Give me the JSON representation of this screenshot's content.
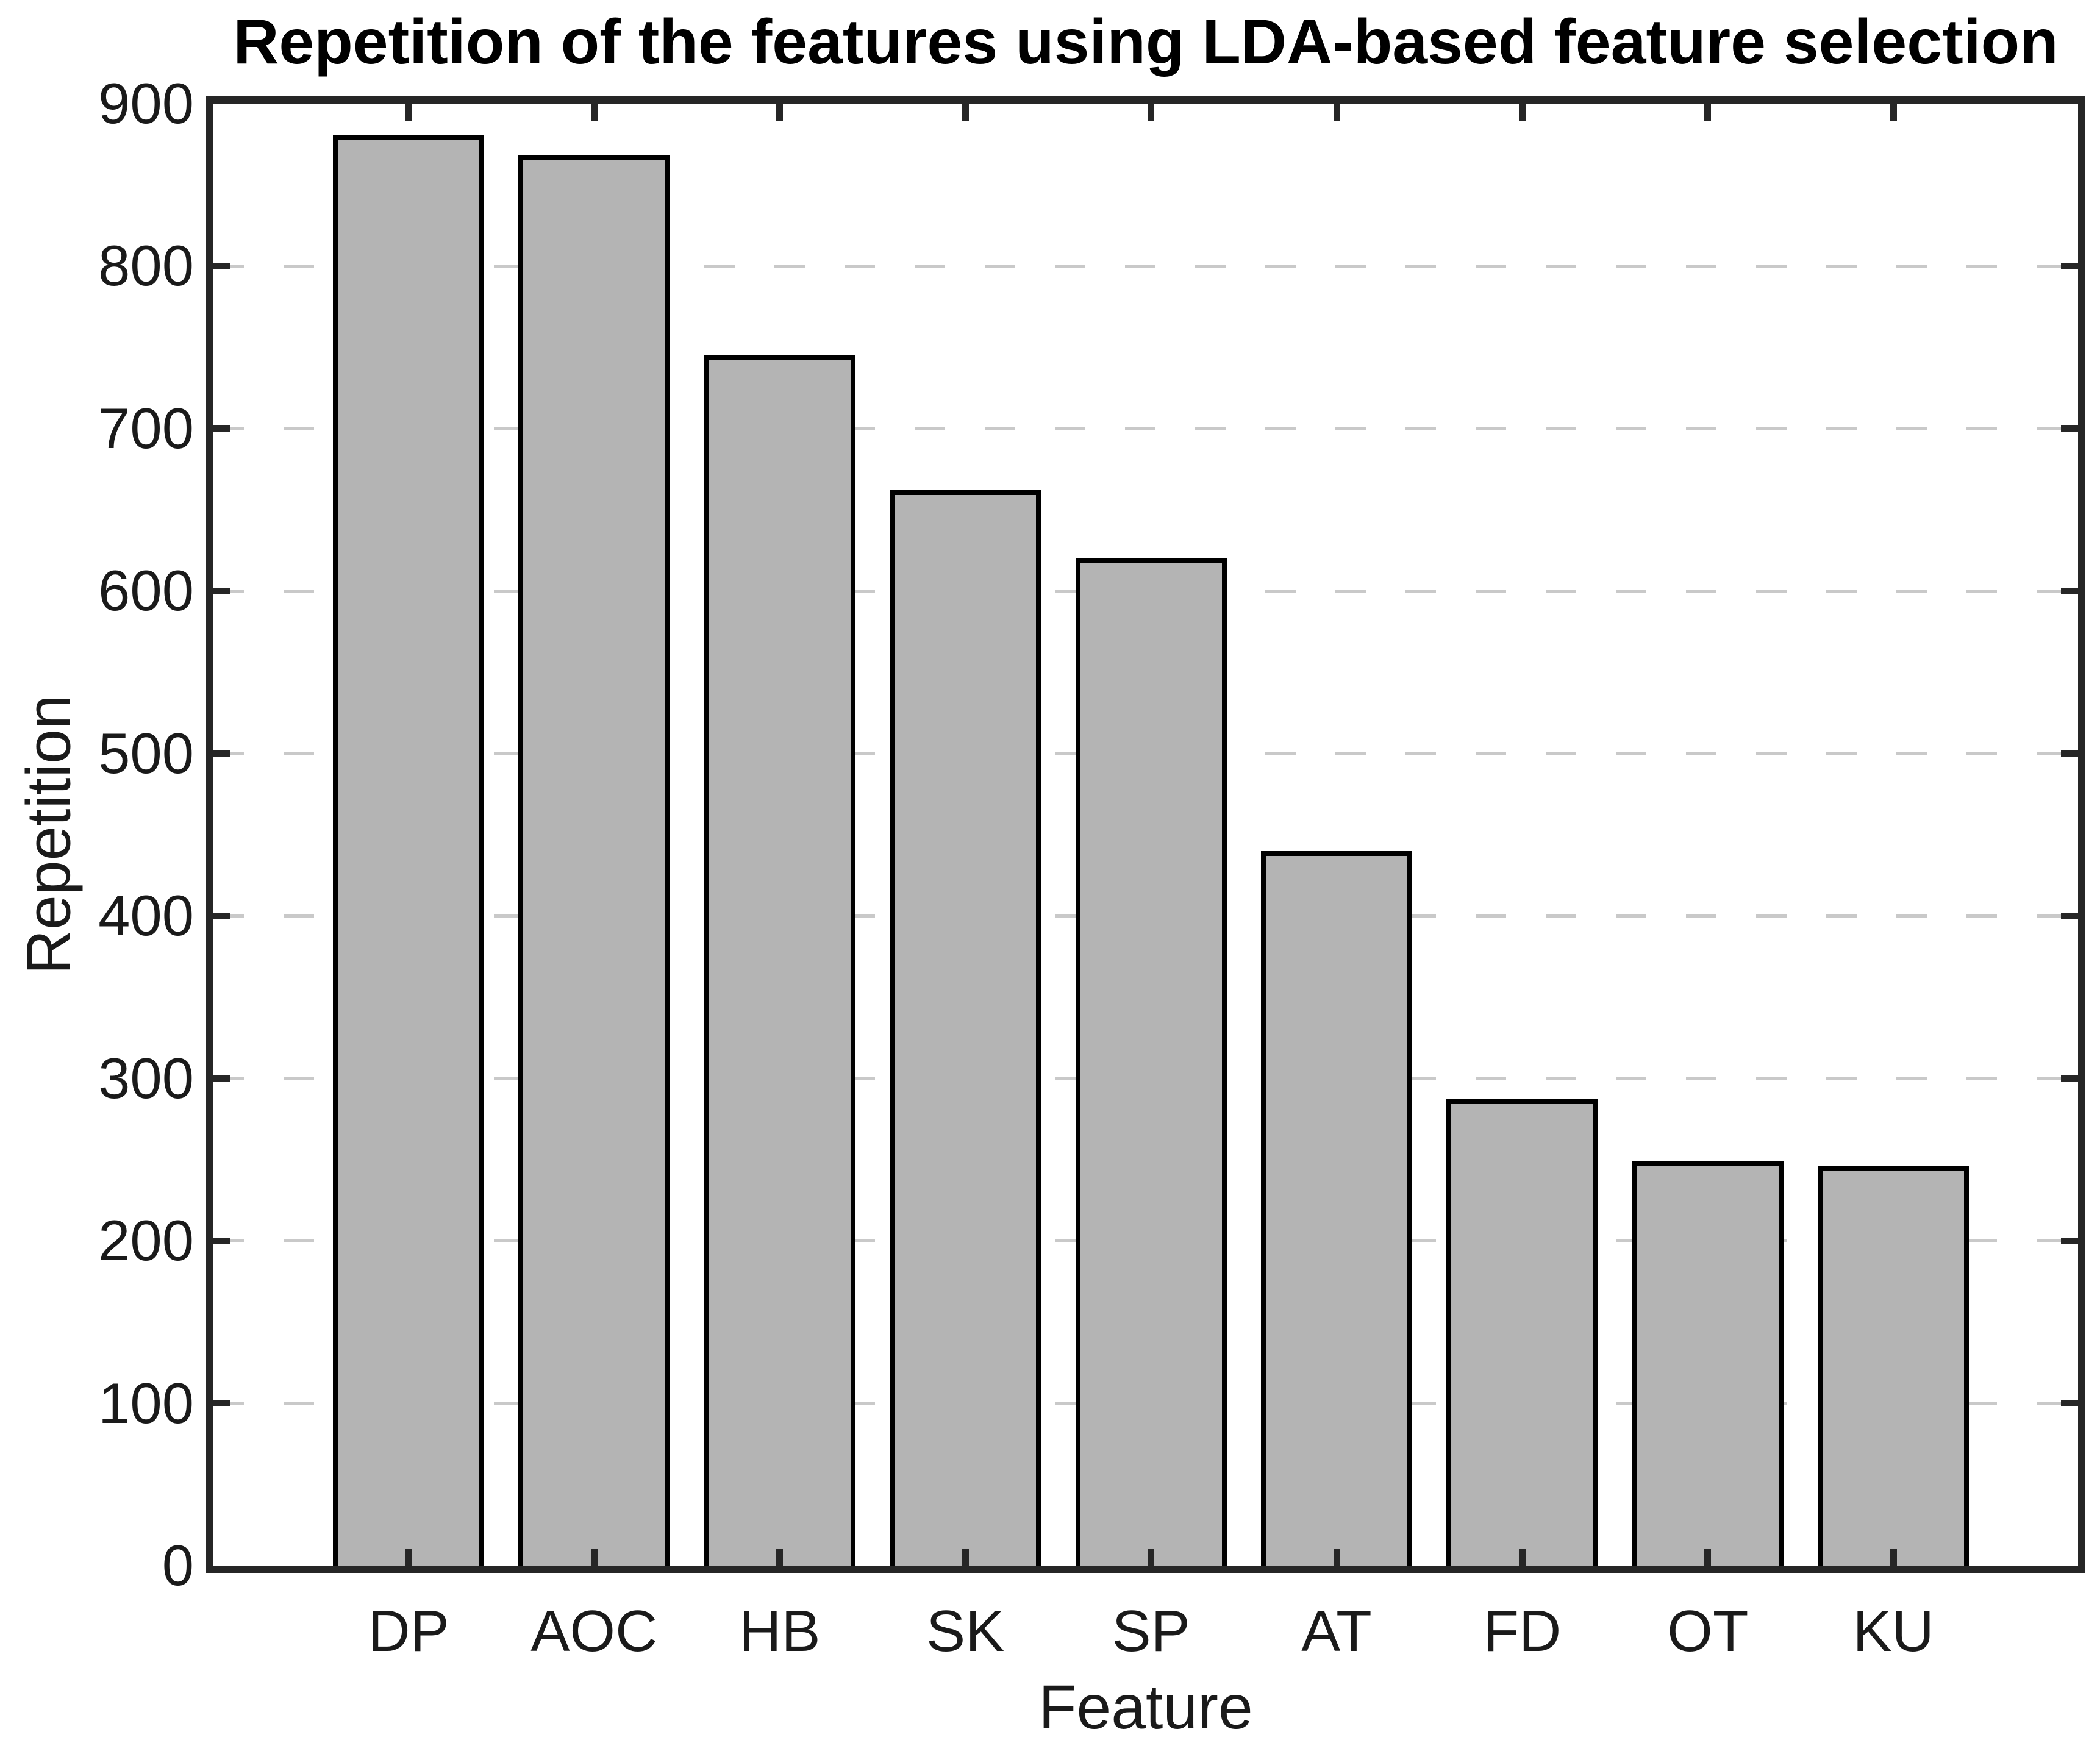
{
  "chart_data": {
    "type": "bar",
    "title": "Repetition of the features using LDA-based feature selection",
    "xlabel": "Feature",
    "ylabel": "Repetition",
    "categories": [
      "DP",
      "AOC",
      "HB",
      "SK",
      "SP",
      "AT",
      "FD",
      "OT",
      "KU"
    ],
    "values": [
      881,
      868,
      745,
      662,
      620,
      440,
      287,
      249,
      246
    ],
    "ylim": [
      0,
      900
    ],
    "ytick_step": 100,
    "yticks": [
      0,
      100,
      200,
      300,
      400,
      500,
      600,
      700,
      800,
      900
    ],
    "grid": "horizontal dashed gridlines at each ytick",
    "legend": "none",
    "colors": {
      "bar_fill": "#b4b4b4",
      "bar_edge": "#000000",
      "axis": "#262626",
      "grid": "#c9c9c9",
      "background": "#ffffff",
      "text": "#1a1a1a"
    }
  }
}
